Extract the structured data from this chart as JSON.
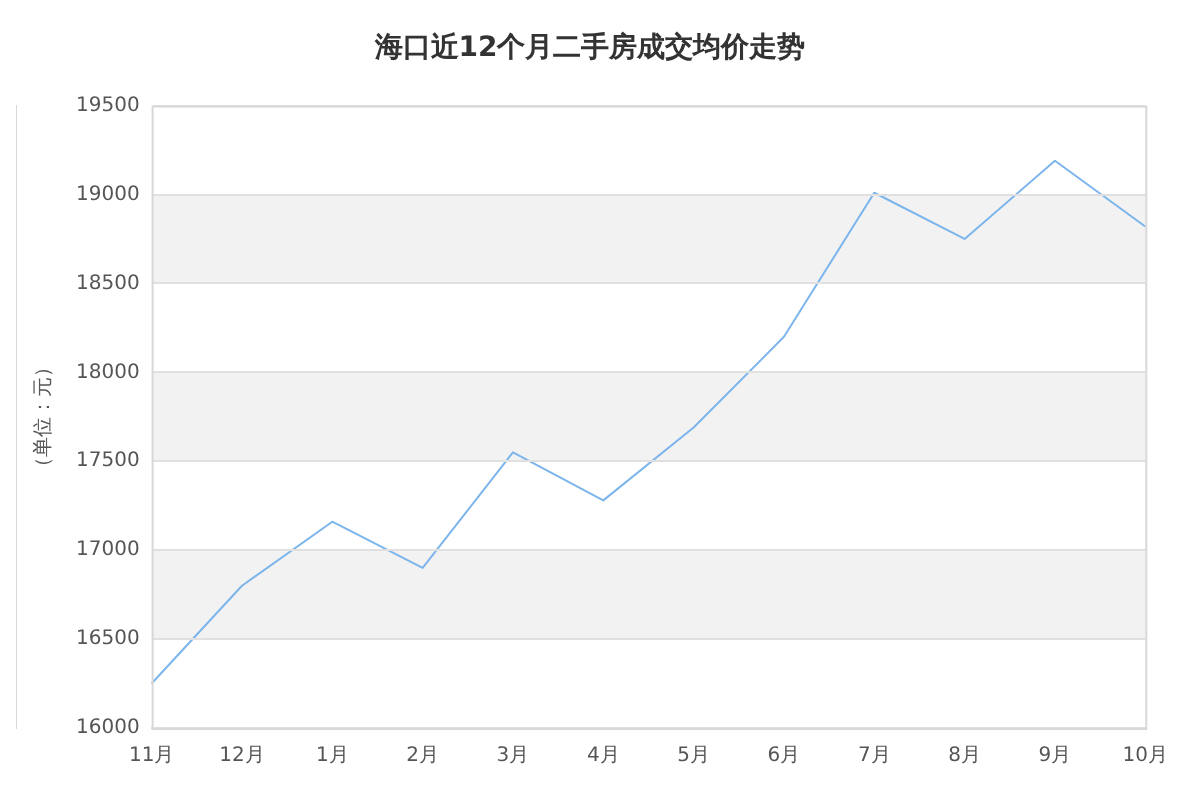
{
  "chart_data": {
    "type": "line",
    "title": "海口近12个月二手房成交均价走势",
    "ylabel": "（单位：元）",
    "categories": [
      "11月",
      "12月",
      "1月",
      "2月",
      "3月",
      "4月",
      "5月",
      "6月",
      "7月",
      "8月",
      "9月",
      "10月"
    ],
    "series": [
      {
        "color": "#7cb5ec",
        "values": [
          16250,
          16800,
          17160,
          16900,
          17550,
          17280,
          17690,
          18200,
          19010,
          18750,
          19190,
          18820
        ]
      }
    ],
    "ylim": [
      16000,
      19500
    ],
    "yticks": [
      16000,
      16500,
      17000,
      17500,
      18000,
      18500,
      19000,
      19500
    ],
    "bands": [
      {
        "axis": "y",
        "from": 16500,
        "to": 17000,
        "color": "#f2f2f2"
      },
      {
        "axis": "y",
        "from": 17500,
        "to": 18000,
        "color": "#f2f2f2"
      },
      {
        "axis": "y",
        "from": 18500,
        "to": 19000,
        "color": "#f2f2f2"
      }
    ],
    "grid": "y",
    "legend": false,
    "marker": "none",
    "line_style": "solid"
  }
}
